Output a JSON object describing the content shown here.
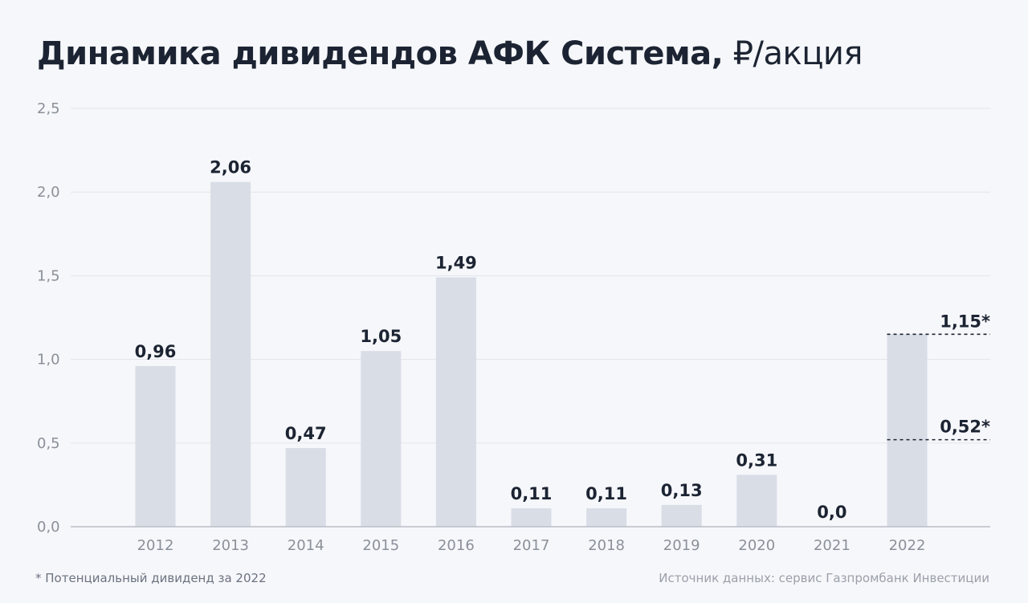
{
  "header": {
    "title": "Динамика дивидендов АФК Система,",
    "unit": "₽/акция"
  },
  "footer": {
    "footnote": "* Потенциальный дивиденд за 2022",
    "source": "Источник данных: сервис Газпромбанк Инвестиции"
  },
  "colors": {
    "bar": "#d8dde6",
    "grid": "#e1e5ec",
    "axis": "#b9bec7",
    "tick": "#8a909a",
    "label": "#1c2433",
    "dashed": "#1c2433"
  },
  "chart_data": {
    "type": "bar",
    "title": "Динамика дивидендов АФК Система, ₽/акция",
    "xlabel": "",
    "ylabel": "",
    "ylim": [
      0,
      2.5
    ],
    "yticks": [
      "0,0",
      "0,5",
      "1,0",
      "1,5",
      "2,0",
      "2,5"
    ],
    "grid": true,
    "categories": [
      "2012",
      "2013",
      "2014",
      "2015",
      "2016",
      "2017",
      "2018",
      "2019",
      "2020",
      "2021",
      "2022"
    ],
    "values": [
      0.96,
      2.06,
      0.47,
      1.05,
      1.49,
      0.11,
      0.11,
      0.13,
      0.31,
      0.0,
      1.15
    ],
    "value_labels": [
      "0,96",
      "2,06",
      "0,47",
      "1,05",
      "1,49",
      "0,11",
      "0,11",
      "0,13",
      "0,31",
      "0,0",
      ""
    ],
    "annotations": [
      {
        "category": "2022",
        "value": 1.15,
        "label": "1,15*",
        "style": "dashed"
      },
      {
        "category": "2022",
        "value": 0.52,
        "label": "0,52*",
        "style": "dashed"
      }
    ]
  }
}
